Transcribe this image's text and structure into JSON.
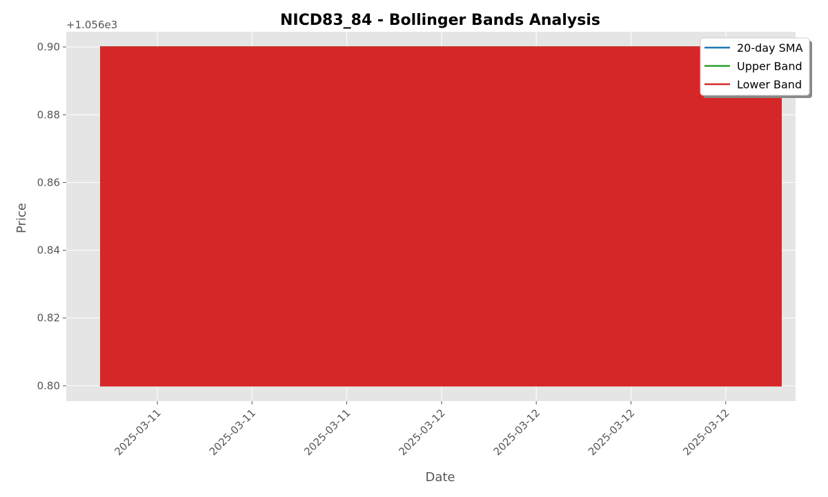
{
  "chart_data": {
    "type": "area",
    "title": "NICD83_84 - Bollinger Bands Analysis",
    "xlabel": "Date",
    "ylabel": "Price",
    "y_offset_label": "+1.056e3",
    "y_offset": 1056,
    "ylim": [
      0.7955,
      0.9045
    ],
    "y_ticks": [
      0.8,
      0.82,
      0.84,
      0.86,
      0.88,
      0.9
    ],
    "y_tick_labels": [
      "0.80",
      "0.82",
      "0.84",
      "0.86",
      "0.88",
      "0.90"
    ],
    "x_tick_labels": [
      "2025-03-11",
      "2025-03-11",
      "2025-03-11",
      "2025-03-12",
      "2025-03-12",
      "2025-03-12",
      "2025-03-12"
    ],
    "band_fill": {
      "upper": 0.9,
      "lower": 0.8
    },
    "series": [
      {
        "name": "20-day SMA",
        "color": "#1f77b4"
      },
      {
        "name": "Upper Band",
        "color": "#2ca02c"
      },
      {
        "name": "Lower Band",
        "color": "#d62728"
      }
    ],
    "fill_color": "#d62728",
    "grid": true,
    "legend_position": "top-right"
  }
}
